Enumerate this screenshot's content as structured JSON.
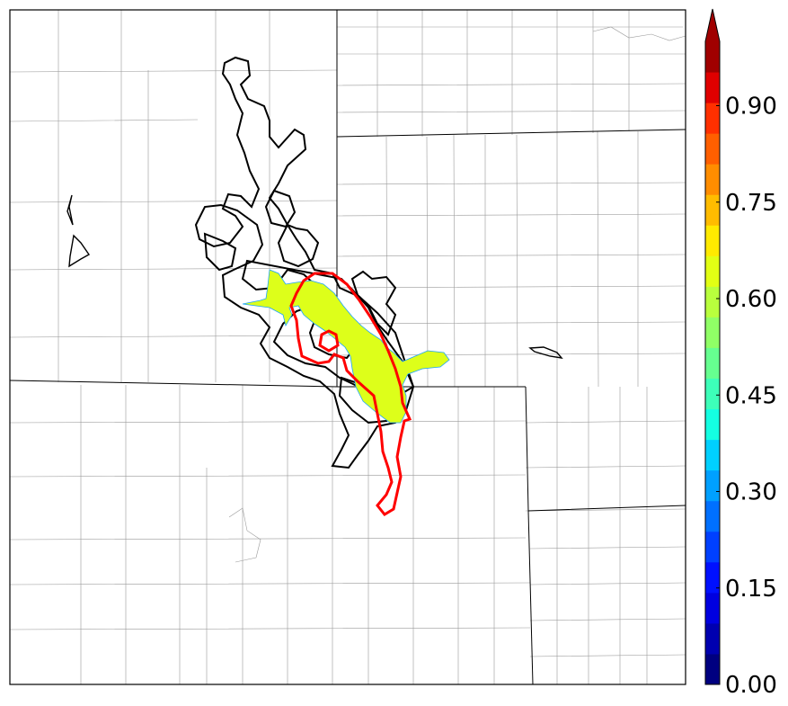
{
  "map": {
    "colors": {
      "probability_fill": "#ddff1a",
      "fill_edge": "#1aa3ff",
      "red_contour": "#ff0000",
      "black_contour": "#000000",
      "state_border": "#000000",
      "county_border": "#9a9a9a"
    }
  },
  "colorbar": {
    "min": 0.0,
    "max": 1.0,
    "step": 0.05,
    "extend": "max",
    "ticks": [
      {
        "value": 0.0,
        "label": "0.00"
      },
      {
        "value": 0.15,
        "label": "0.15"
      },
      {
        "value": 0.3,
        "label": "0.30"
      },
      {
        "value": 0.45,
        "label": "0.45"
      },
      {
        "value": 0.6,
        "label": "0.60"
      },
      {
        "value": 0.75,
        "label": "0.75"
      },
      {
        "value": 0.9,
        "label": "0.90"
      }
    ],
    "bands": [
      "#000080",
      "#0000b0",
      "#0000e0",
      "#0010ff",
      "#0040ff",
      "#0070ff",
      "#00a0ff",
      "#00d0ff",
      "#14ffe2",
      "#3dffb9",
      "#66ff90",
      "#90ff66",
      "#b9ff3d",
      "#e2ff14",
      "#ffea00",
      "#ffbc00",
      "#ff8d00",
      "#ff5f00",
      "#ff3000",
      "#e00000",
      "#a00000"
    ]
  }
}
